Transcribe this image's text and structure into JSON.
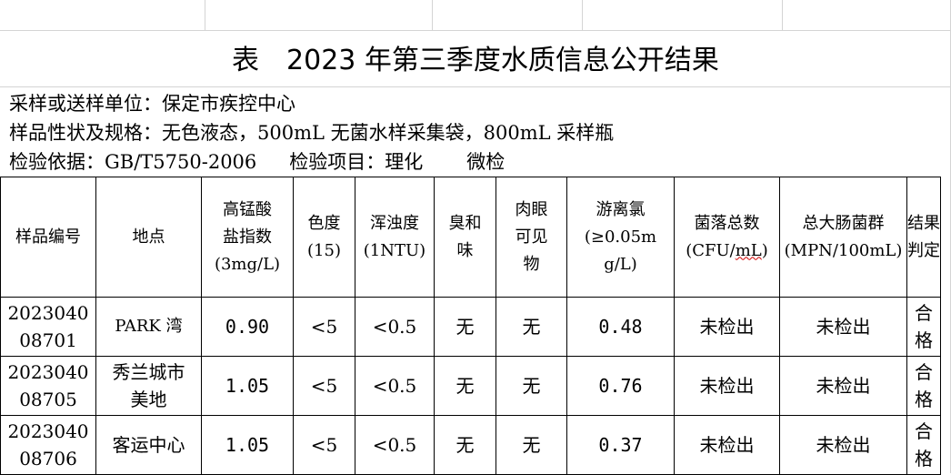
{
  "title": {
    "prefix": "表",
    "text": "2023 年第三季度水质信息公开结果"
  },
  "info": {
    "unit_label": "采样或送样单位：",
    "unit_value": "保定市疾控中心",
    "sample_label": "样品性状及规格：",
    "sample_value": "无色液态，500mL 无菌水样采集袋，800mL 采样瓶",
    "basis_label": "检验依据：",
    "basis_value": "GB/T5750-2006",
    "items_label": "检验项目：",
    "item_1": "理化",
    "item_2": "微检"
  },
  "table": {
    "headers": {
      "sample_no": "样品编号",
      "location": "地点",
      "permanganate_1": "高锰酸",
      "permanganate_2": "盐指数",
      "permanganate_3": "(3mg/L)",
      "color_1": "色度",
      "color_2": "(15)",
      "turbidity_1": "浑浊度",
      "turbidity_2": "(1NTU)",
      "odor_1": "臭和",
      "odor_2": "味",
      "visible_1": "肉眼",
      "visible_2": "可见",
      "visible_3": "物",
      "chlorine_1": "游离氯",
      "chlorine_2": "(≥0.05m",
      "chlorine_3": "g/L)",
      "colony_1": "菌落总数",
      "colony_2a": "(CFU/",
      "colony_2b": "mL",
      "colony_2c": ")",
      "coliform_1": "总大肠菌群",
      "coliform_2": "(MPN/100mL)",
      "verdict": "结果判定"
    },
    "rows": [
      {
        "no_1": "2023040",
        "no_2": "08701",
        "location_1": "PARK 湾",
        "location_2": "",
        "permanganate": "0.90",
        "color": "<5",
        "turbidity": "<0.5",
        "odor": "无",
        "visible": "无",
        "chlorine": "0.48",
        "colony": "未检出",
        "coliform": "未检出",
        "verdict": "合格"
      },
      {
        "no_1": "2023040",
        "no_2": "08705",
        "location_1": "秀兰城市",
        "location_2": "美地",
        "permanganate": "1.05",
        "color": "<5",
        "turbidity": "<0.5",
        "odor": "无",
        "visible": "无",
        "chlorine": "0.76",
        "colony": "未检出",
        "coliform": "未检出",
        "verdict": "合格"
      },
      {
        "no_1": "2023040",
        "no_2": "08706",
        "location_1": "客运中心",
        "location_2": "",
        "permanganate": "1.05",
        "color": "<5",
        "turbidity": "<0.5",
        "odor": "无",
        "visible": "无",
        "chlorine": "0.37",
        "colony": "未检出",
        "coliform": "未检出",
        "verdict": "合格"
      }
    ]
  }
}
